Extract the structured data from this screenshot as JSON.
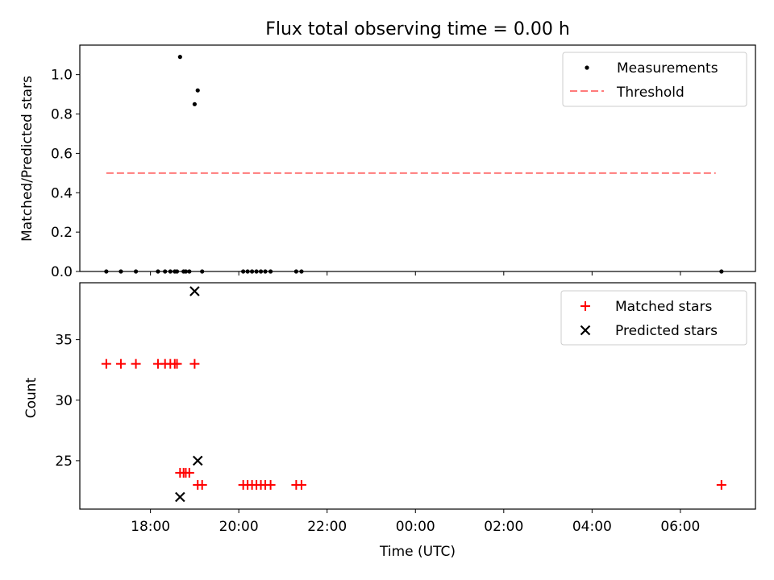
{
  "title": "Flux total observing time = 0.00 h",
  "colors": {
    "measurement": "#000000",
    "threshold": "#ff7a7a",
    "matched": "#ff0000",
    "predicted": "#000000"
  },
  "chart_data": [
    {
      "type": "scatter",
      "panel": "top",
      "ylabel": "Matched/Predicted stars",
      "ylim": [
        0,
        1.15
      ],
      "yticks": [
        "0.0",
        "0.2",
        "0.4",
        "0.6",
        "0.8",
        "1.0"
      ],
      "xlim_hours": [
        16.4,
        31.7
      ],
      "legend": {
        "placement": "top-right",
        "entries": [
          "Measurements",
          "Threshold"
        ]
      },
      "threshold": {
        "value": 0.5,
        "x_start_hours": 17.0,
        "x_end_hours": 30.8
      },
      "series": [
        {
          "name": "Measurements",
          "points": [
            [
              17.0,
              0.0
            ],
            [
              17.33,
              0.0
            ],
            [
              17.67,
              0.0
            ],
            [
              18.17,
              0.0
            ],
            [
              18.33,
              0.0
            ],
            [
              18.45,
              0.0
            ],
            [
              18.55,
              0.0
            ],
            [
              18.6,
              0.0
            ],
            [
              18.67,
              1.09
            ],
            [
              18.75,
              0.0
            ],
            [
              18.8,
              0.0
            ],
            [
              18.88,
              0.0
            ],
            [
              19.0,
              0.85
            ],
            [
              19.07,
              0.92
            ],
            [
              19.17,
              0.0
            ],
            [
              20.1,
              0.0
            ],
            [
              20.2,
              0.0
            ],
            [
              20.3,
              0.0
            ],
            [
              20.4,
              0.0
            ],
            [
              20.5,
              0.0
            ],
            [
              20.6,
              0.0
            ],
            [
              20.72,
              0.0
            ],
            [
              21.3,
              0.0
            ],
            [
              21.42,
              0.0
            ],
            [
              30.93,
              0.0
            ]
          ]
        }
      ]
    },
    {
      "type": "scatter",
      "panel": "bottom",
      "xlabel": "Time (UTC)",
      "ylabel": "Count",
      "ylim": [
        21.0,
        39.7
      ],
      "yticks": [
        "25",
        "30",
        "35"
      ],
      "xlim_hours": [
        16.4,
        31.7
      ],
      "xticks": [
        {
          "hour": 18,
          "label": "18:00"
        },
        {
          "hour": 20,
          "label": "20:00"
        },
        {
          "hour": 22,
          "label": "22:00"
        },
        {
          "hour": 24,
          "label": "00:00"
        },
        {
          "hour": 26,
          "label": "02:00"
        },
        {
          "hour": 28,
          "label": "04:00"
        },
        {
          "hour": 30,
          "label": "06:00"
        }
      ],
      "legend": {
        "placement": "top-right",
        "entries": [
          "Matched stars",
          "Predicted stars"
        ]
      },
      "series": [
        {
          "name": "Matched stars",
          "marker": "+",
          "points": [
            [
              17.0,
              33
            ],
            [
              17.33,
              33
            ],
            [
              17.67,
              33
            ],
            [
              18.17,
              33
            ],
            [
              18.33,
              33
            ],
            [
              18.45,
              33
            ],
            [
              18.55,
              33
            ],
            [
              18.6,
              33
            ],
            [
              19.0,
              33
            ],
            [
              18.67,
              24
            ],
            [
              18.75,
              24
            ],
            [
              18.8,
              24
            ],
            [
              18.88,
              24
            ],
            [
              19.07,
              23
            ],
            [
              19.17,
              23
            ],
            [
              20.1,
              23
            ],
            [
              20.2,
              23
            ],
            [
              20.3,
              23
            ],
            [
              20.4,
              23
            ],
            [
              20.5,
              23
            ],
            [
              20.6,
              23
            ],
            [
              20.72,
              23
            ],
            [
              21.3,
              23
            ],
            [
              21.42,
              23
            ],
            [
              30.93,
              23
            ]
          ]
        },
        {
          "name": "Predicted stars",
          "marker": "x",
          "points": [
            [
              19.0,
              39
            ],
            [
              19.07,
              25
            ],
            [
              18.67,
              22
            ]
          ]
        }
      ]
    }
  ]
}
